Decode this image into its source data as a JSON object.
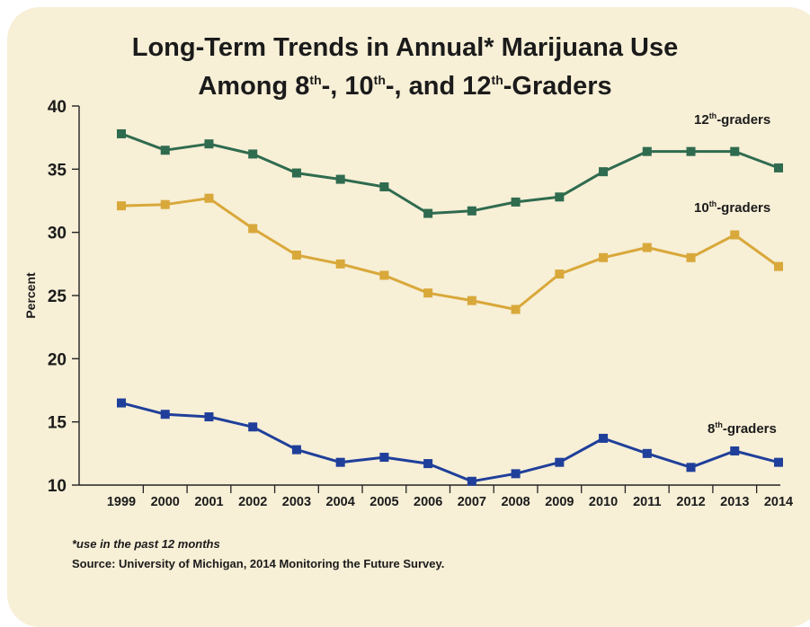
{
  "title": {
    "line1": "Long-Term Trends in Annual* Marijuana Use",
    "line2_prefix": "Among 8",
    "line2_sup1": "th",
    "line2_mid1": "-, 10",
    "line2_sup2": "th",
    "line2_mid2": "-, and 12",
    "line2_sup3": "th",
    "line2_suffix": "-Graders"
  },
  "footnote": "*use in the past 12 months",
  "source": "Source: University of Michigan, 2014 Monitoring the Future Survey.",
  "chart_data": {
    "type": "line",
    "x": [
      "1999",
      "2000",
      "2001",
      "2002",
      "2003",
      "2004",
      "2005",
      "2006",
      "2007",
      "2008",
      "2009",
      "2010",
      "2011",
      "2012",
      "2013",
      "2014"
    ],
    "ylabel": "Percent",
    "ylim": [
      10,
      40
    ],
    "yticks": [
      10,
      15,
      20,
      25,
      30,
      35,
      40
    ],
    "grid": false,
    "series": [
      {
        "name": "12th-graders",
        "label_main": "12",
        "label_sup": "th",
        "label_rest": "-graders",
        "color": "#2f6b4f",
        "values": [
          37.8,
          36.5,
          37.0,
          36.2,
          34.7,
          34.2,
          33.6,
          31.5,
          31.7,
          32.4,
          32.8,
          34.8,
          36.4,
          36.4,
          36.4,
          35.1
        ]
      },
      {
        "name": "10th-graders",
        "label_main": "10",
        "label_sup": "th",
        "label_rest": "-graders",
        "color": "#d9a83a",
        "values": [
          32.1,
          32.2,
          32.7,
          30.3,
          28.2,
          27.5,
          26.6,
          25.2,
          24.6,
          23.9,
          26.7,
          28.0,
          28.8,
          28.0,
          29.8,
          27.3
        ]
      },
      {
        "name": "8th-graders",
        "label_main": "8",
        "label_sup": "th",
        "label_rest": "-graders",
        "color": "#1f3f9a",
        "values": [
          16.5,
          15.6,
          15.4,
          14.6,
          12.8,
          11.8,
          12.2,
          11.7,
          10.3,
          10.9,
          11.8,
          13.7,
          12.5,
          11.4,
          12.7,
          11.8
        ]
      }
    ]
  }
}
